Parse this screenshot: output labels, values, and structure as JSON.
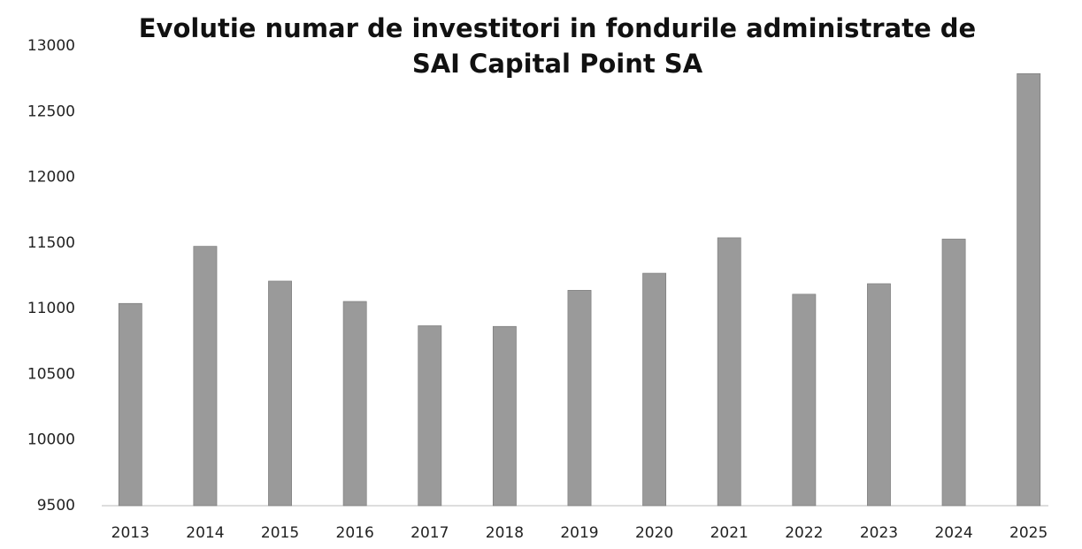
{
  "chart_data": {
    "type": "bar",
    "title": "Evolutie numar de investitori in fondurile administrate de SAI Capital Point SA",
    "categories": [
      "2013",
      "2014",
      "2015",
      "2016",
      "2017",
      "2018",
      "2019",
      "2020",
      "2021",
      "2022",
      "2023",
      "2024",
      "2025"
    ],
    "values": [
      11040,
      11475,
      11210,
      11055,
      10870,
      10865,
      11140,
      11270,
      11540,
      11110,
      11190,
      11530,
      12790
    ],
    "color": "#9a9a9a",
    "ylim": [
      9500,
      13000
    ],
    "yticks": [
      9500,
      10000,
      10500,
      11000,
      11500,
      12000,
      12500,
      13000
    ],
    "grid": false
  }
}
